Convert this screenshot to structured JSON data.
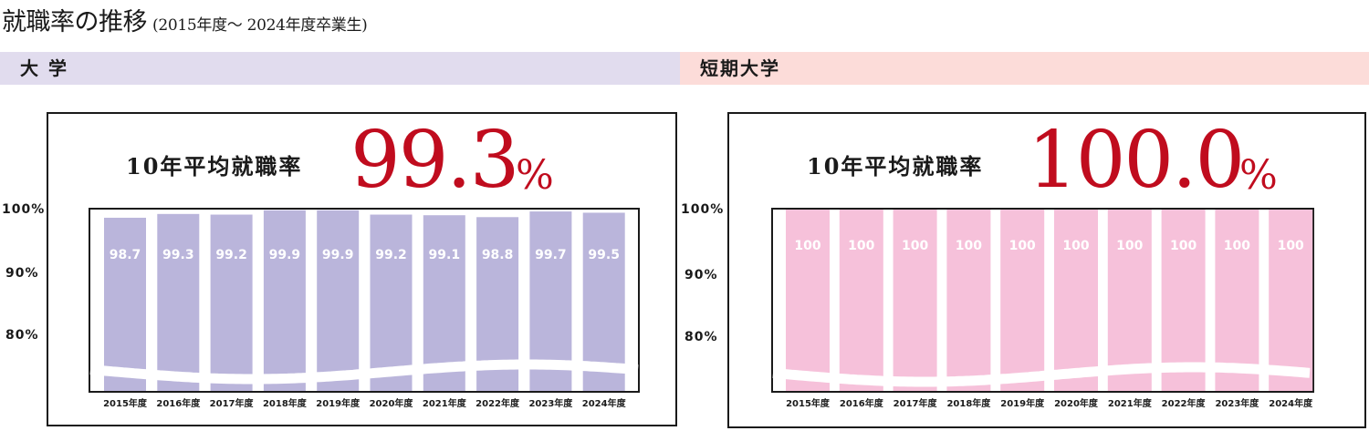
{
  "title": {
    "main": "就職率の推移",
    "sub": "(2015年度〜 2024年度卒業生)"
  },
  "colors": {
    "univ_band": "#e1dcee",
    "jc_band": "#fcdcd9",
    "univ_bar": "#bab5db",
    "jc_bar": "#f6c1da",
    "accent": "#c00c1e"
  },
  "panels": [
    {
      "band_label": "大 学",
      "avg_label": "10年平均就職率",
      "avg_value": "99.3",
      "avg_unit": "%",
      "y_ticks": [
        "100%",
        "90%",
        "80%"
      ]
    },
    {
      "band_label": "短期大学",
      "avg_label": "10年平均就職率",
      "avg_value": "100.0",
      "avg_unit": "%",
      "y_ticks": [
        "100%",
        "90%",
        "80%"
      ]
    }
  ],
  "chart_data": [
    {
      "type": "bar",
      "categories": [
        "2015年度",
        "2016年度",
        "2017年度",
        "2018年度",
        "2019年度",
        "2020年度",
        "2021年度",
        "2022年度",
        "2023年度",
        "2024年度"
      ],
      "values": [
        98.7,
        99.3,
        99.2,
        99.9,
        99.9,
        99.2,
        99.1,
        98.8,
        99.7,
        99.5
      ],
      "labels": [
        "98.7",
        "99.3",
        "99.2",
        "99.9",
        "99.9",
        "99.2",
        "99.1",
        "98.8",
        "99.7",
        "99.5"
      ],
      "ylim": [
        70,
        100
      ],
      "y_tick_values": [
        100,
        90,
        80
      ],
      "axis_break": true
    },
    {
      "type": "bar",
      "categories": [
        "2015年度",
        "2016年度",
        "2017年度",
        "2018年度",
        "2019年度",
        "2020年度",
        "2021年度",
        "2022年度",
        "2023年度",
        "2024年度"
      ],
      "values": [
        100,
        100,
        100,
        100,
        100,
        100,
        100,
        100,
        100,
        100
      ],
      "labels": [
        "100",
        "100",
        "100",
        "100",
        "100",
        "100",
        "100",
        "100",
        "100",
        "100"
      ],
      "ylim": [
        70,
        100
      ],
      "y_tick_values": [
        100,
        90,
        80
      ],
      "axis_break": true
    }
  ]
}
